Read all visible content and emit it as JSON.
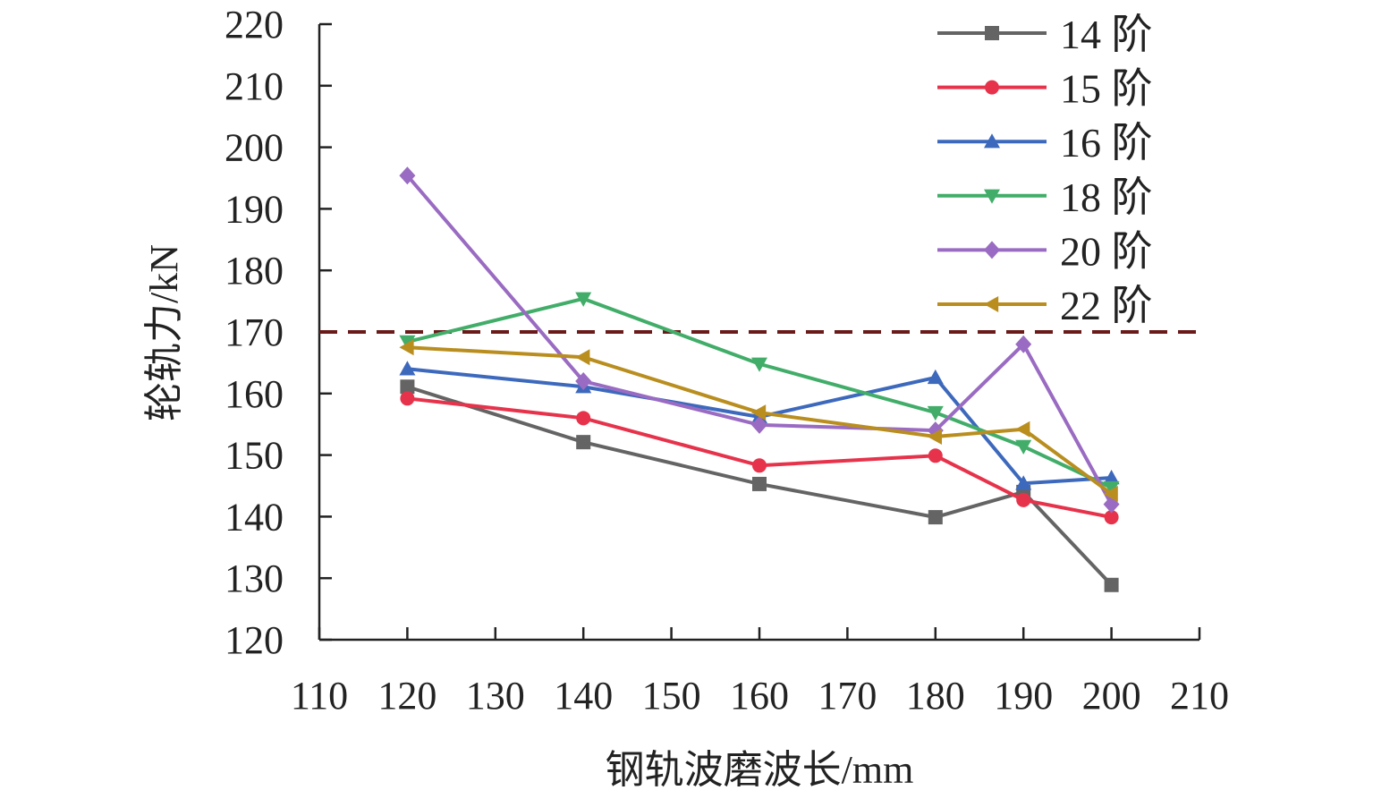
{
  "chart_data": {
    "type": "line",
    "title": "",
    "xlabel": "钢轨波磨波长/mm",
    "ylabel": "轮轨力/kN",
    "xlim": [
      110,
      210
    ],
    "ylim": [
      120,
      220
    ],
    "xticks": [
      110,
      120,
      130,
      140,
      150,
      160,
      170,
      180,
      190,
      200,
      210
    ],
    "yticks": [
      120,
      130,
      140,
      150,
      160,
      170,
      180,
      190,
      200,
      210,
      220
    ],
    "x": [
      120,
      140,
      160,
      180,
      190,
      200
    ],
    "legend_position": "top-right",
    "reference_line": {
      "y": 170,
      "style": "dashed",
      "color": "#6b1a1a"
    },
    "series": [
      {
        "name": "14 阶",
        "color": "#646464",
        "marker": "square",
        "values": [
          161.1,
          152.1,
          145.3,
          139.9,
          144.0,
          128.9
        ]
      },
      {
        "name": "15 阶",
        "color": "#e6334b",
        "marker": "circle",
        "values": [
          159.2,
          156.0,
          148.3,
          149.9,
          142.7,
          139.9
        ]
      },
      {
        "name": "16 阶",
        "color": "#3d69bd",
        "marker": "triangle-up",
        "values": [
          164.0,
          161.1,
          156.2,
          162.6,
          145.4,
          146.3
        ]
      },
      {
        "name": "18 阶",
        "color": "#41ad69",
        "marker": "triangle-down",
        "values": [
          168.4,
          175.4,
          164.8,
          156.9,
          151.4,
          144.7
        ]
      },
      {
        "name": "20 阶",
        "color": "#9a6bc2",
        "marker": "diamond",
        "values": [
          195.4,
          162.0,
          154.9,
          154.0,
          168.0,
          142.0
        ]
      },
      {
        "name": "22 阶",
        "color": "#b98e1f",
        "marker": "triangle-left",
        "values": [
          167.5,
          165.9,
          156.9,
          153.0,
          154.2,
          143.7
        ]
      }
    ]
  }
}
